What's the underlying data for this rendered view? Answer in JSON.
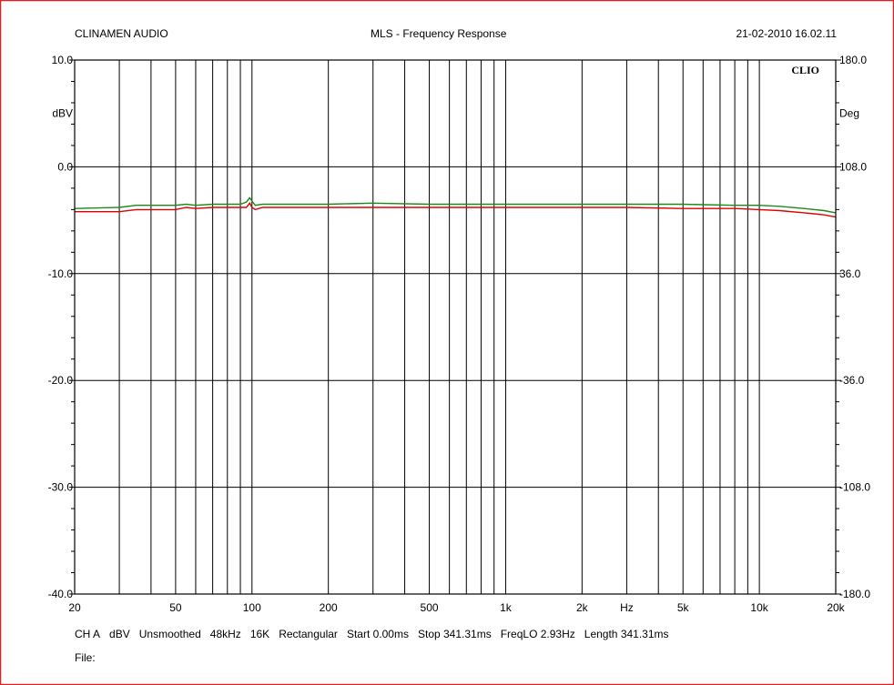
{
  "header": {
    "left": "CLINAMEN AUDIO",
    "center": "MLS - Frequency Response",
    "right": "21-02-2010 16.02.11"
  },
  "logo_text": "CLIO",
  "footer": {
    "settings": [
      "CH A",
      "dBV",
      "Unsmoothed",
      "48kHz",
      "16K",
      "Rectangular",
      "Start 0.00ms",
      "Stop 341.31ms",
      "FreqLO 2.93Hz",
      "Length 341.31ms"
    ],
    "file_label": "File:"
  },
  "colors": {
    "border": "#e02020",
    "grid": "#000000",
    "series_green": "#1a8a1a",
    "series_red": "#e00000"
  },
  "chart_data": {
    "type": "line",
    "x_scale": "log",
    "xlim": [
      20,
      20000
    ],
    "ylim": [
      -40,
      10
    ],
    "y2lim": [
      -180,
      180
    ],
    "ylabel": "dBV",
    "y2label": "Deg",
    "grid": true,
    "x_tick_labels": [
      {
        "value": 20,
        "label": "20"
      },
      {
        "value": 50,
        "label": "50"
      },
      {
        "value": 100,
        "label": "100"
      },
      {
        "value": 200,
        "label": "200"
      },
      {
        "value": 500,
        "label": "500"
      },
      {
        "value": 1000,
        "label": "1k"
      },
      {
        "value": 2000,
        "label": "2k"
      },
      {
        "value": 5000,
        "label": "5k"
      },
      {
        "value": 10000,
        "label": "10k"
      },
      {
        "value": 20000,
        "label": "20k"
      }
    ],
    "x_unit_label": "Hz",
    "y_ticks": [
      {
        "value": 10,
        "label": "10.0"
      },
      {
        "value": 0,
        "label": "0.0"
      },
      {
        "value": -10,
        "label": "-10.0"
      },
      {
        "value": -20,
        "label": "-20.0"
      },
      {
        "value": -30,
        "label": "-30.0"
      },
      {
        "value": -40,
        "label": "-40.0"
      }
    ],
    "y2_ticks": [
      {
        "value": 180,
        "label": "180.0"
      },
      {
        "value": 108,
        "label": "108.0"
      },
      {
        "value": 36,
        "label": "36.0"
      },
      {
        "value": -36,
        "label": "-36.0"
      },
      {
        "value": -108,
        "label": "-108.0"
      },
      {
        "value": -180,
        "label": "-180.0"
      }
    ],
    "series": [
      {
        "color": "#1a8a1a",
        "points": [
          [
            20,
            -3.9
          ],
          [
            30,
            -3.8
          ],
          [
            35,
            -3.6
          ],
          [
            40,
            -3.6
          ],
          [
            50,
            -3.6
          ],
          [
            55,
            -3.5
          ],
          [
            60,
            -3.6
          ],
          [
            70,
            -3.5
          ],
          [
            80,
            -3.5
          ],
          [
            90,
            -3.5
          ],
          [
            95,
            -3.3
          ],
          [
            98,
            -2.9
          ],
          [
            100,
            -3.2
          ],
          [
            103,
            -3.6
          ],
          [
            110,
            -3.5
          ],
          [
            150,
            -3.5
          ],
          [
            200,
            -3.5
          ],
          [
            300,
            -3.4
          ],
          [
            500,
            -3.5
          ],
          [
            1000,
            -3.5
          ],
          [
            2000,
            -3.5
          ],
          [
            3000,
            -3.5
          ],
          [
            5000,
            -3.5
          ],
          [
            8000,
            -3.6
          ],
          [
            10000,
            -3.6
          ],
          [
            12000,
            -3.7
          ],
          [
            15000,
            -3.9
          ],
          [
            18000,
            -4.1
          ],
          [
            20000,
            -4.3
          ]
        ]
      },
      {
        "color": "#e00000",
        "points": [
          [
            20,
            -4.2
          ],
          [
            30,
            -4.2
          ],
          [
            35,
            -4.0
          ],
          [
            40,
            -4.0
          ],
          [
            50,
            -4.0
          ],
          [
            55,
            -3.8
          ],
          [
            60,
            -3.9
          ],
          [
            70,
            -3.8
          ],
          [
            80,
            -3.8
          ],
          [
            90,
            -3.8
          ],
          [
            95,
            -3.8
          ],
          [
            98,
            -3.4
          ],
          [
            100,
            -3.8
          ],
          [
            103,
            -4.0
          ],
          [
            110,
            -3.8
          ],
          [
            150,
            -3.8
          ],
          [
            200,
            -3.8
          ],
          [
            500,
            -3.8
          ],
          [
            1000,
            -3.8
          ],
          [
            2000,
            -3.8
          ],
          [
            3000,
            -3.8
          ],
          [
            5000,
            -3.9
          ],
          [
            8000,
            -3.9
          ],
          [
            10000,
            -4.0
          ],
          [
            12000,
            -4.1
          ],
          [
            15000,
            -4.3
          ],
          [
            18000,
            -4.5
          ],
          [
            20000,
            -4.7
          ]
        ]
      }
    ]
  }
}
